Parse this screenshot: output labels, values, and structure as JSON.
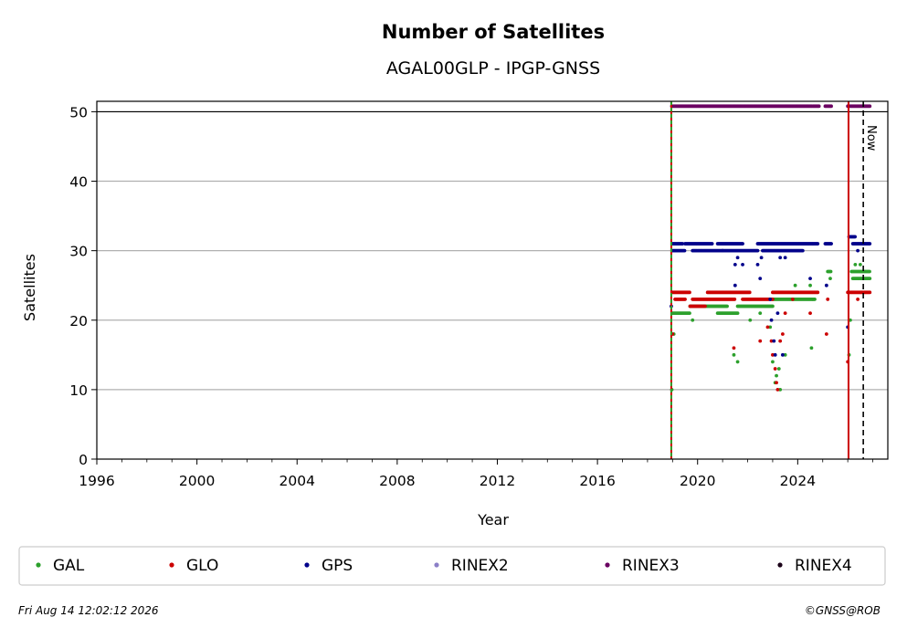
{
  "chart_data": {
    "type": "scatter",
    "title": "Number of Satellites",
    "subtitle": "AGAL00GLP - IPGP-GNSS",
    "xlabel": "Year",
    "ylabel": "Satellites",
    "xlim": [
      1996,
      2027.6
    ],
    "ylim": [
      0,
      51.5
    ],
    "x_ticks": [
      "1996",
      "2000",
      "2004",
      "2008",
      "2012",
      "2016",
      "2020",
      "2024"
    ],
    "y_ticks": [
      "0",
      "10",
      "20",
      "30",
      "40",
      "50"
    ],
    "grid": "horizontal",
    "reference_line_y": 50,
    "now_label": "Now",
    "now_year": 2026.62,
    "vertical_lines": [
      {
        "year": 2018.95,
        "color": "#cc0000",
        "style": "solid"
      },
      {
        "year": 2018.95,
        "color": "#2ca02c",
        "style": "dashed"
      },
      {
        "year": 2026.03,
        "color": "#cc0000",
        "style": "solid"
      }
    ],
    "series": [
      {
        "name": "GAL",
        "color": "#2ca02c",
        "segments": [
          {
            "from": 2019.0,
            "to": 2019.7,
            "value": 21
          },
          {
            "from": 2019.7,
            "to": 2021.2,
            "value": 22
          },
          {
            "from": 2020.8,
            "to": 2021.6,
            "value": 21
          },
          {
            "from": 2021.6,
            "to": 2023.0,
            "value": 22
          },
          {
            "from": 2023.0,
            "to": 2024.7,
            "value": 23
          },
          {
            "from": 2025.2,
            "to": 2025.35,
            "value": 27
          },
          {
            "from": 2026.15,
            "to": 2026.9,
            "value": 27
          },
          {
            "from": 2026.2,
            "to": 2026.9,
            "value": 26
          }
        ],
        "points": [
          [
            2018.97,
            10
          ],
          [
            2019.05,
            18
          ],
          [
            2019.8,
            20
          ],
          [
            2021.45,
            15
          ],
          [
            2021.6,
            14
          ],
          [
            2022.1,
            20
          ],
          [
            2022.5,
            21
          ],
          [
            2022.9,
            19
          ],
          [
            2023.0,
            14
          ],
          [
            2023.1,
            11
          ],
          [
            2023.15,
            12
          ],
          [
            2023.25,
            13
          ],
          [
            2023.3,
            10
          ],
          [
            2023.5,
            15
          ],
          [
            2023.9,
            25
          ],
          [
            2024.55,
            16
          ],
          [
            2024.5,
            25
          ],
          [
            2025.3,
            26
          ],
          [
            2026.05,
            15
          ],
          [
            2026.1,
            20
          ],
          [
            2026.3,
            28
          ],
          [
            2026.5,
            28
          ]
        ]
      },
      {
        "name": "GLO",
        "color": "#cc0000",
        "segments": [
          {
            "from": 2019.0,
            "to": 2019.7,
            "value": 24
          },
          {
            "from": 2019.1,
            "to": 2019.5,
            "value": 23
          },
          {
            "from": 2019.7,
            "to": 2020.3,
            "value": 22
          },
          {
            "from": 2019.8,
            "to": 2021.5,
            "value": 23
          },
          {
            "from": 2020.4,
            "to": 2022.1,
            "value": 24
          },
          {
            "from": 2021.8,
            "to": 2023.0,
            "value": 23
          },
          {
            "from": 2023.0,
            "to": 2024.8,
            "value": 24
          },
          {
            "from": 2026.0,
            "to": 2026.9,
            "value": 24
          }
        ],
        "points": [
          [
            2019.0,
            18
          ],
          [
            2021.45,
            16
          ],
          [
            2022.5,
            17
          ],
          [
            2022.8,
            19
          ],
          [
            2022.95,
            17
          ],
          [
            2023.0,
            15
          ],
          [
            2023.1,
            13
          ],
          [
            2023.15,
            11
          ],
          [
            2023.2,
            10
          ],
          [
            2023.3,
            17
          ],
          [
            2023.4,
            18
          ],
          [
            2023.5,
            21
          ],
          [
            2023.8,
            23
          ],
          [
            2024.5,
            21
          ],
          [
            2025.2,
            23
          ],
          [
            2025.15,
            18
          ],
          [
            2026.0,
            14
          ],
          [
            2026.4,
            23
          ]
        ]
      },
      {
        "name": "GPS",
        "color": "#00008b",
        "segments": [
          {
            "from": 2019.0,
            "to": 2019.4,
            "value": 31
          },
          {
            "from": 2019.0,
            "to": 2019.5,
            "value": 30
          },
          {
            "from": 2019.5,
            "to": 2020.6,
            "value": 31
          },
          {
            "from": 2019.8,
            "to": 2021.0,
            "value": 30
          },
          {
            "from": 2020.8,
            "to": 2021.8,
            "value": 31
          },
          {
            "from": 2021.0,
            "to": 2022.4,
            "value": 30
          },
          {
            "from": 2022.4,
            "to": 2024.8,
            "value": 31
          },
          {
            "from": 2022.6,
            "to": 2024.2,
            "value": 30
          },
          {
            "from": 2025.1,
            "to": 2025.35,
            "value": 31
          },
          {
            "from": 2026.05,
            "to": 2026.3,
            "value": 32
          },
          {
            "from": 2026.2,
            "to": 2026.9,
            "value": 31
          }
        ],
        "points": [
          [
            2018.95,
            22
          ],
          [
            2021.5,
            28
          ],
          [
            2021.6,
            29
          ],
          [
            2021.5,
            25
          ],
          [
            2021.8,
            28
          ],
          [
            2022.4,
            28
          ],
          [
            2022.5,
            26
          ],
          [
            2022.55,
            29
          ],
          [
            2022.9,
            23
          ],
          [
            2022.95,
            20
          ],
          [
            2023.05,
            17
          ],
          [
            2023.1,
            15
          ],
          [
            2023.2,
            21
          ],
          [
            2023.3,
            29
          ],
          [
            2023.4,
            15
          ],
          [
            2023.5,
            29
          ],
          [
            2024.5,
            26
          ],
          [
            2025.15,
            25
          ],
          [
            2026.0,
            19
          ],
          [
            2026.4,
            30
          ]
        ]
      },
      {
        "name": "RINEX2",
        "color": "#8b7fc7",
        "segments": [],
        "points": []
      },
      {
        "name": "RINEX3",
        "color": "#6a0061",
        "segments": [
          {
            "from": 2018.97,
            "to": 2024.85,
            "value": 50.8
          },
          {
            "from": 2025.1,
            "to": 2025.35,
            "value": 50.8
          },
          {
            "from": 2026.0,
            "to": 2026.9,
            "value": 50.8
          }
        ],
        "points": []
      },
      {
        "name": "RINEX4",
        "color": "#1a0018",
        "segments": [],
        "points": []
      }
    ]
  },
  "legend": {
    "items": [
      {
        "label": "GAL",
        "color": "#2ca02c"
      },
      {
        "label": "GLO",
        "color": "#cc0000"
      },
      {
        "label": "GPS",
        "color": "#00008b"
      },
      {
        "label": "RINEX2",
        "color": "#8b7fc7"
      },
      {
        "label": "RINEX3",
        "color": "#6a0061"
      },
      {
        "label": "RINEX4",
        "color": "#1a0018"
      }
    ]
  },
  "footer": {
    "timestamp": "Fri Aug 14 12:02:12 2026",
    "credit": "©GNSS@ROB"
  }
}
